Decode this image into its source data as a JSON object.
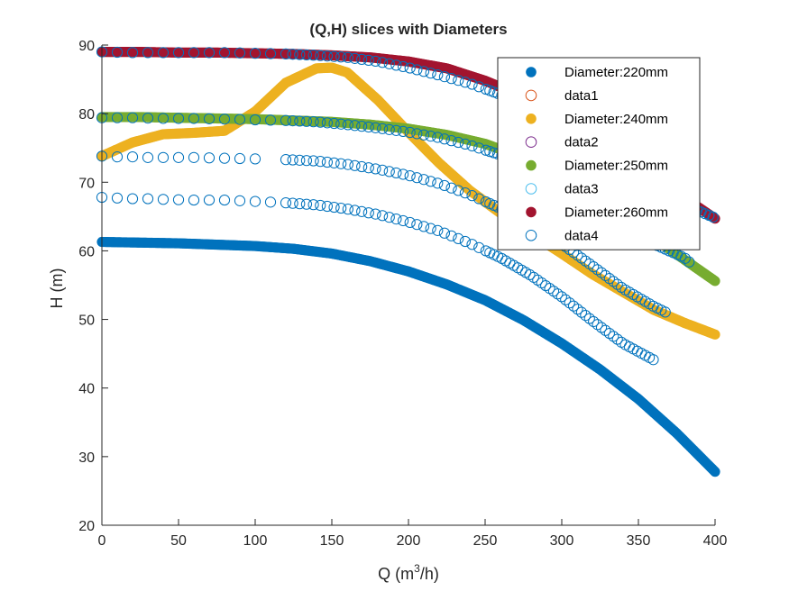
{
  "chart_data": {
    "type": "scatter",
    "title": "(Q,H) slices with Diameters",
    "xlabel_prefix": "Q (m",
    "xlabel_sup": "3",
    "xlabel_suffix": "/h)",
    "ylabel": "H (m)",
    "xlim": [
      0,
      400
    ],
    "ylim": [
      20,
      90
    ],
    "xticks": [
      0,
      50,
      100,
      150,
      200,
      250,
      300,
      350,
      400
    ],
    "yticks": [
      20,
      30,
      40,
      50,
      60,
      70,
      80,
      90
    ],
    "grid": false,
    "legend_placement": "top-right",
    "series": [
      {
        "name": "Diameter:220mm",
        "marker": "filled",
        "color": "#0072BD",
        "x": [
          0,
          25,
          50,
          75,
          100,
          125,
          150,
          175,
          200,
          225,
          250,
          275,
          300,
          325,
          350,
          375,
          400
        ],
        "y": [
          61.3,
          61.2,
          61.1,
          60.9,
          60.7,
          60.3,
          59.6,
          58.5,
          57.0,
          55.1,
          52.8,
          49.9,
          46.5,
          42.7,
          38.4,
          33.4,
          27.8
        ]
      },
      {
        "name": "data1",
        "marker": "open",
        "color": "#D95319",
        "x": [],
        "y": []
      },
      {
        "name": "Diameter:240mm",
        "marker": "filled",
        "color": "#EDB120",
        "x": [
          0,
          20,
          40,
          60,
          80,
          100,
          120,
          140,
          150,
          160,
          180,
          200,
          220,
          240,
          260,
          280,
          300,
          320,
          340,
          360,
          380,
          400
        ],
        "y": [
          73.8,
          75.8,
          77.0,
          77.2,
          77.5,
          80.3,
          84.5,
          86.6,
          86.7,
          86.0,
          82.0,
          77.3,
          72.8,
          68.8,
          65.5,
          62.5,
          59.6,
          56.6,
          54.0,
          51.4,
          49.5,
          47.8
        ]
      },
      {
        "name": "data2",
        "marker": "open",
        "color": "#7E2F8E",
        "x": [],
        "y": []
      },
      {
        "name": "Diameter:250mm",
        "marker": "filled",
        "color": "#77AC30",
        "x": [
          0,
          25,
          50,
          75,
          100,
          125,
          150,
          175,
          200,
          225,
          250,
          275,
          300,
          325,
          350,
          375,
          400
        ],
        "y": [
          79.5,
          79.5,
          79.4,
          79.3,
          79.2,
          79.0,
          78.8,
          78.4,
          77.8,
          76.9,
          75.6,
          73.6,
          70.8,
          67.3,
          63.4,
          59.5,
          55.6
        ]
      },
      {
        "name": "data3",
        "marker": "open",
        "color": "#4DBEEE",
        "x": [],
        "y": []
      },
      {
        "name": "Diameter:260mm",
        "marker": "filled",
        "color": "#A2142F",
        "x": [
          0,
          25,
          50,
          75,
          100,
          125,
          150,
          175,
          200,
          225,
          250,
          275,
          300,
          325,
          350,
          375,
          400
        ],
        "y": [
          89.0,
          89.0,
          88.9,
          88.9,
          88.8,
          88.7,
          88.5,
          88.2,
          87.6,
          86.6,
          84.8,
          82.5,
          79.5,
          76.0,
          72.3,
          68.5,
          64.7
        ]
      },
      {
        "name": "data4",
        "marker": "open",
        "color": "#0072BD",
        "groups": [
          {
            "x": [
              0,
              10,
              20,
              30,
              40,
              60,
              80,
              100
            ],
            "y": [
              73.8,
              73.7,
              73.7,
              73.6,
              73.6,
              73.6,
              73.5,
              73.4
            ]
          },
          {
            "x": [
              120,
              140,
              160,
              180,
              200,
              220,
              240,
              260,
              280,
              300,
              320,
              340,
              360,
              370
            ],
            "y": [
              73.3,
              73.1,
              72.6,
              71.9,
              71.0,
              69.8,
              68.2,
              66.2,
              63.8,
              61.0,
              57.8,
              54.5,
              51.9,
              50.8
            ]
          },
          {
            "x": [
              0,
              10,
              20,
              30,
              40,
              60,
              80,
              100,
              120,
              140,
              160,
              180,
              200,
              220,
              240,
              260,
              280,
              300,
              320,
              340,
              360
            ],
            "y": [
              67.8,
              67.7,
              67.6,
              67.6,
              67.5,
              67.4,
              67.4,
              67.2,
              67.0,
              66.7,
              66.1,
              65.3,
              64.2,
              62.9,
              61.1,
              59.0,
              56.4,
              53.3,
              49.8,
              46.5,
              44.1
            ]
          },
          {
            "x": [
              0,
              20,
              40,
              60,
              80,
              100,
              120,
              140,
              160,
              180,
              200,
              220,
              240,
              260,
              280,
              300,
              320,
              340,
              360,
              380,
              385
            ],
            "y": [
              79.4,
              79.4,
              79.3,
              79.3,
              79.2,
              79.1,
              79.0,
              78.8,
              78.4,
              77.9,
              77.3,
              76.5,
              75.4,
              74.0,
              72.0,
              69.5,
              66.5,
              63.4,
              61.0,
              59.0,
              58.0
            ]
          },
          {
            "x": [
              0,
              20,
              40,
              60,
              80,
              100,
              120,
              140,
              160,
              180,
              200,
              220,
              240,
              260,
              280,
              300,
              320,
              340,
              360,
              380,
              400
            ],
            "y": [
              89.0,
              88.9,
              88.9,
              88.9,
              88.9,
              88.8,
              88.7,
              88.5,
              88.2,
              87.6,
              86.7,
              85.6,
              84.4,
              82.8,
              80.7,
              78.0,
              75.0,
              71.8,
              68.9,
              66.7,
              64.8
            ]
          }
        ]
      }
    ]
  }
}
